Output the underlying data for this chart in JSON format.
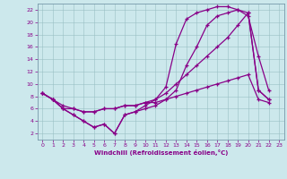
{
  "xlabel": "Windchill (Refroidissement éolien,°C)",
  "background_color": "#cce8ec",
  "line_color": "#880088",
  "grid_color": "#99bfc4",
  "spine_color": "#7799aa",
  "xlim": [
    -0.5,
    23.5
  ],
  "ylim": [
    1.0,
    23.0
  ],
  "xticks": [
    0,
    1,
    2,
    3,
    4,
    5,
    6,
    7,
    8,
    9,
    10,
    11,
    12,
    13,
    14,
    15,
    16,
    17,
    18,
    19,
    20,
    21,
    22,
    23
  ],
  "yticks": [
    2,
    4,
    6,
    8,
    10,
    12,
    14,
    16,
    18,
    20,
    22
  ],
  "curve1_x": [
    0,
    1,
    2,
    3,
    4,
    5,
    6,
    7,
    8,
    9,
    10,
    11,
    12,
    13,
    14,
    15,
    16,
    17,
    18,
    19,
    20,
    21,
    22
  ],
  "curve1_y": [
    8.5,
    7.5,
    6.5,
    6.0,
    5.5,
    5.5,
    6.0,
    6.0,
    6.5,
    6.5,
    7.0,
    7.0,
    7.5,
    8.0,
    8.5,
    9.0,
    9.5,
    10.0,
    10.5,
    11.0,
    11.5,
    7.5,
    7.0
  ],
  "curve2_x": [
    0,
    1,
    2,
    3,
    4,
    5,
    6,
    7,
    8,
    9,
    10,
    11,
    12,
    13,
    14,
    15,
    16,
    17,
    18,
    19,
    20,
    21,
    22
  ],
  "curve2_y": [
    8.5,
    7.5,
    6.0,
    5.0,
    4.0,
    3.0,
    3.5,
    2.0,
    5.0,
    5.5,
    6.0,
    6.5,
    7.5,
    9.0,
    13.0,
    16.0,
    19.5,
    21.0,
    21.5,
    22.0,
    21.0,
    14.5,
    9.0
  ],
  "curve3_x": [
    0,
    1,
    2,
    3,
    4,
    5,
    6,
    7,
    8,
    9,
    10,
    11,
    12,
    13,
    14,
    15,
    16,
    17,
    18,
    19,
    20,
    21,
    22
  ],
  "curve3_y": [
    8.5,
    7.5,
    6.0,
    5.0,
    4.0,
    3.0,
    3.5,
    2.0,
    5.0,
    5.5,
    6.5,
    7.5,
    9.5,
    16.5,
    20.5,
    21.5,
    22.0,
    22.5,
    22.5,
    22.0,
    21.5,
    9.0,
    7.5
  ],
  "curve4_x": [
    0,
    1,
    2,
    3,
    4,
    5,
    6,
    7,
    8,
    9,
    10,
    11,
    12,
    13,
    14,
    15,
    16,
    17,
    18,
    19,
    20,
    21,
    22
  ],
  "curve4_y": [
    8.5,
    7.5,
    6.0,
    6.0,
    5.5,
    5.5,
    6.0,
    6.0,
    6.5,
    6.5,
    7.0,
    7.5,
    8.5,
    10.0,
    11.5,
    13.0,
    14.5,
    16.0,
    17.5,
    19.5,
    21.5,
    9.0,
    7.5
  ]
}
